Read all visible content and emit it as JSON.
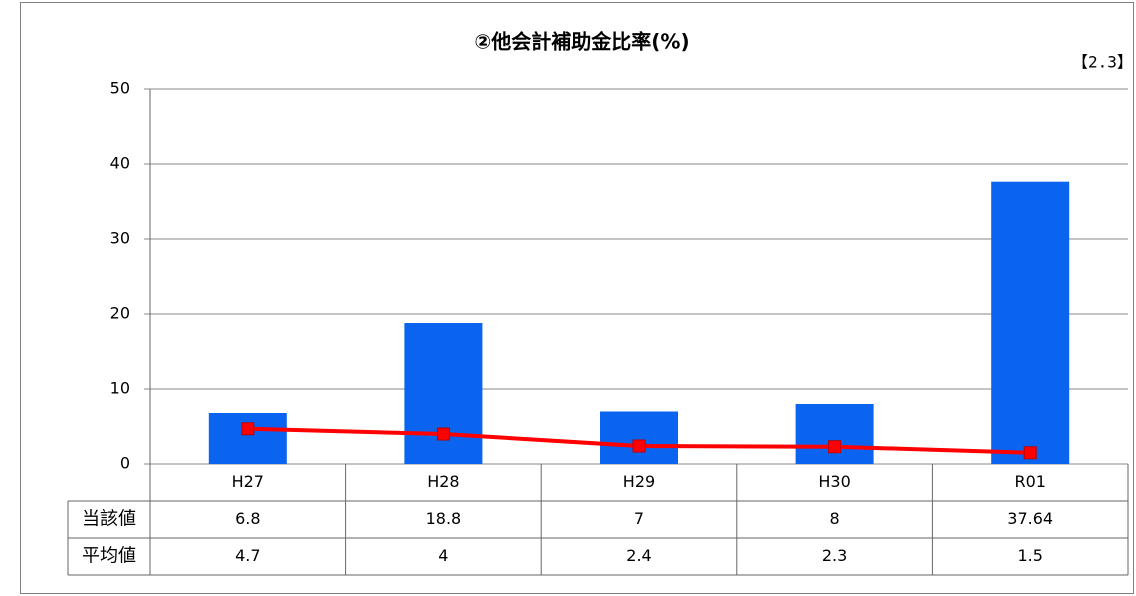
{
  "chart_data": {
    "type": "bar",
    "title": "②他会計補助金比率(%)",
    "note": "【2.3】",
    "categories": [
      "H27",
      "H28",
      "H29",
      "H30",
      "R01"
    ],
    "series": [
      {
        "name": "当該値",
        "type": "bar",
        "color": "#0a64f0",
        "values": [
          6.8,
          18.8,
          7,
          8,
          37.64
        ]
      },
      {
        "name": "平均値",
        "type": "line",
        "color": "#ff0000",
        "values": [
          4.7,
          4,
          2.4,
          2.3,
          1.5
        ]
      }
    ],
    "ylim": [
      0,
      50
    ],
    "yticks": [
      0,
      10,
      20,
      30,
      40,
      50
    ],
    "grid": true
  }
}
